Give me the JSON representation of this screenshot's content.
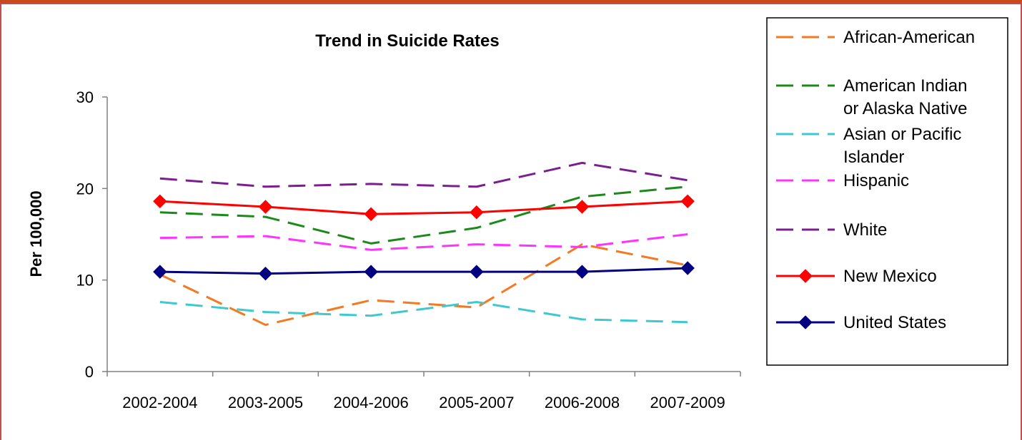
{
  "chart_data": {
    "type": "line",
    "title": "Trend in Suicide Rates",
    "xlabel": "",
    "ylabel": "Per 100,000",
    "ylim": [
      0,
      30
    ],
    "yticks": [
      0,
      10,
      20,
      30
    ],
    "grid": false,
    "legend_position": "right",
    "categories": [
      "2002-2004",
      "2003-2005",
      "2004-2006",
      "2005-2007",
      "2006-2008",
      "2007-2009"
    ],
    "series": [
      {
        "name": "African-American",
        "values": [
          10.6,
          5.1,
          7.8,
          7.0,
          13.9,
          11.6
        ],
        "color": "#F47920",
        "style": "dashed",
        "marker": "none"
      },
      {
        "name": "American Indian or Alaska Native",
        "values": [
          17.4,
          16.9,
          14.0,
          15.7,
          19.1,
          20.2
        ],
        "color": "#1B8A1B",
        "style": "dashed",
        "marker": "none"
      },
      {
        "name": "Asian or Pacific Islander",
        "values": [
          7.6,
          6.5,
          6.1,
          7.6,
          5.7,
          5.4
        ],
        "color": "#3FC9CF",
        "style": "dashed",
        "marker": "none"
      },
      {
        "name": "Hispanic",
        "values": [
          14.6,
          14.8,
          13.3,
          13.9,
          13.6,
          15.0
        ],
        "color": "#FF33FF",
        "style": "dashed",
        "marker": "none"
      },
      {
        "name": "White",
        "values": [
          21.1,
          20.2,
          20.5,
          20.2,
          22.8,
          20.9
        ],
        "color": "#7B1F8E",
        "style": "dashed",
        "marker": "none"
      },
      {
        "name": "New Mexico",
        "values": [
          18.6,
          18.0,
          17.2,
          17.4,
          18.0,
          18.6
        ],
        "color": "#FF0000",
        "style": "solid",
        "marker": "diamond"
      },
      {
        "name": "United States",
        "values": [
          10.9,
          10.7,
          10.9,
          10.9,
          10.9,
          11.3
        ],
        "color": "#000080",
        "style": "solid",
        "marker": "diamond"
      }
    ],
    "legend_lines": [
      [
        "African-American"
      ],
      [
        "American Indian",
        "or Alaska Native"
      ],
      [
        "Asian or Pacific",
        "Islander"
      ],
      [
        "Hispanic"
      ],
      [
        "White"
      ],
      [
        "New Mexico"
      ],
      [
        "United States"
      ]
    ]
  },
  "colors": {
    "frame_border": "#C0504D",
    "top_band": "#C84A16",
    "axis": "#808080"
  }
}
